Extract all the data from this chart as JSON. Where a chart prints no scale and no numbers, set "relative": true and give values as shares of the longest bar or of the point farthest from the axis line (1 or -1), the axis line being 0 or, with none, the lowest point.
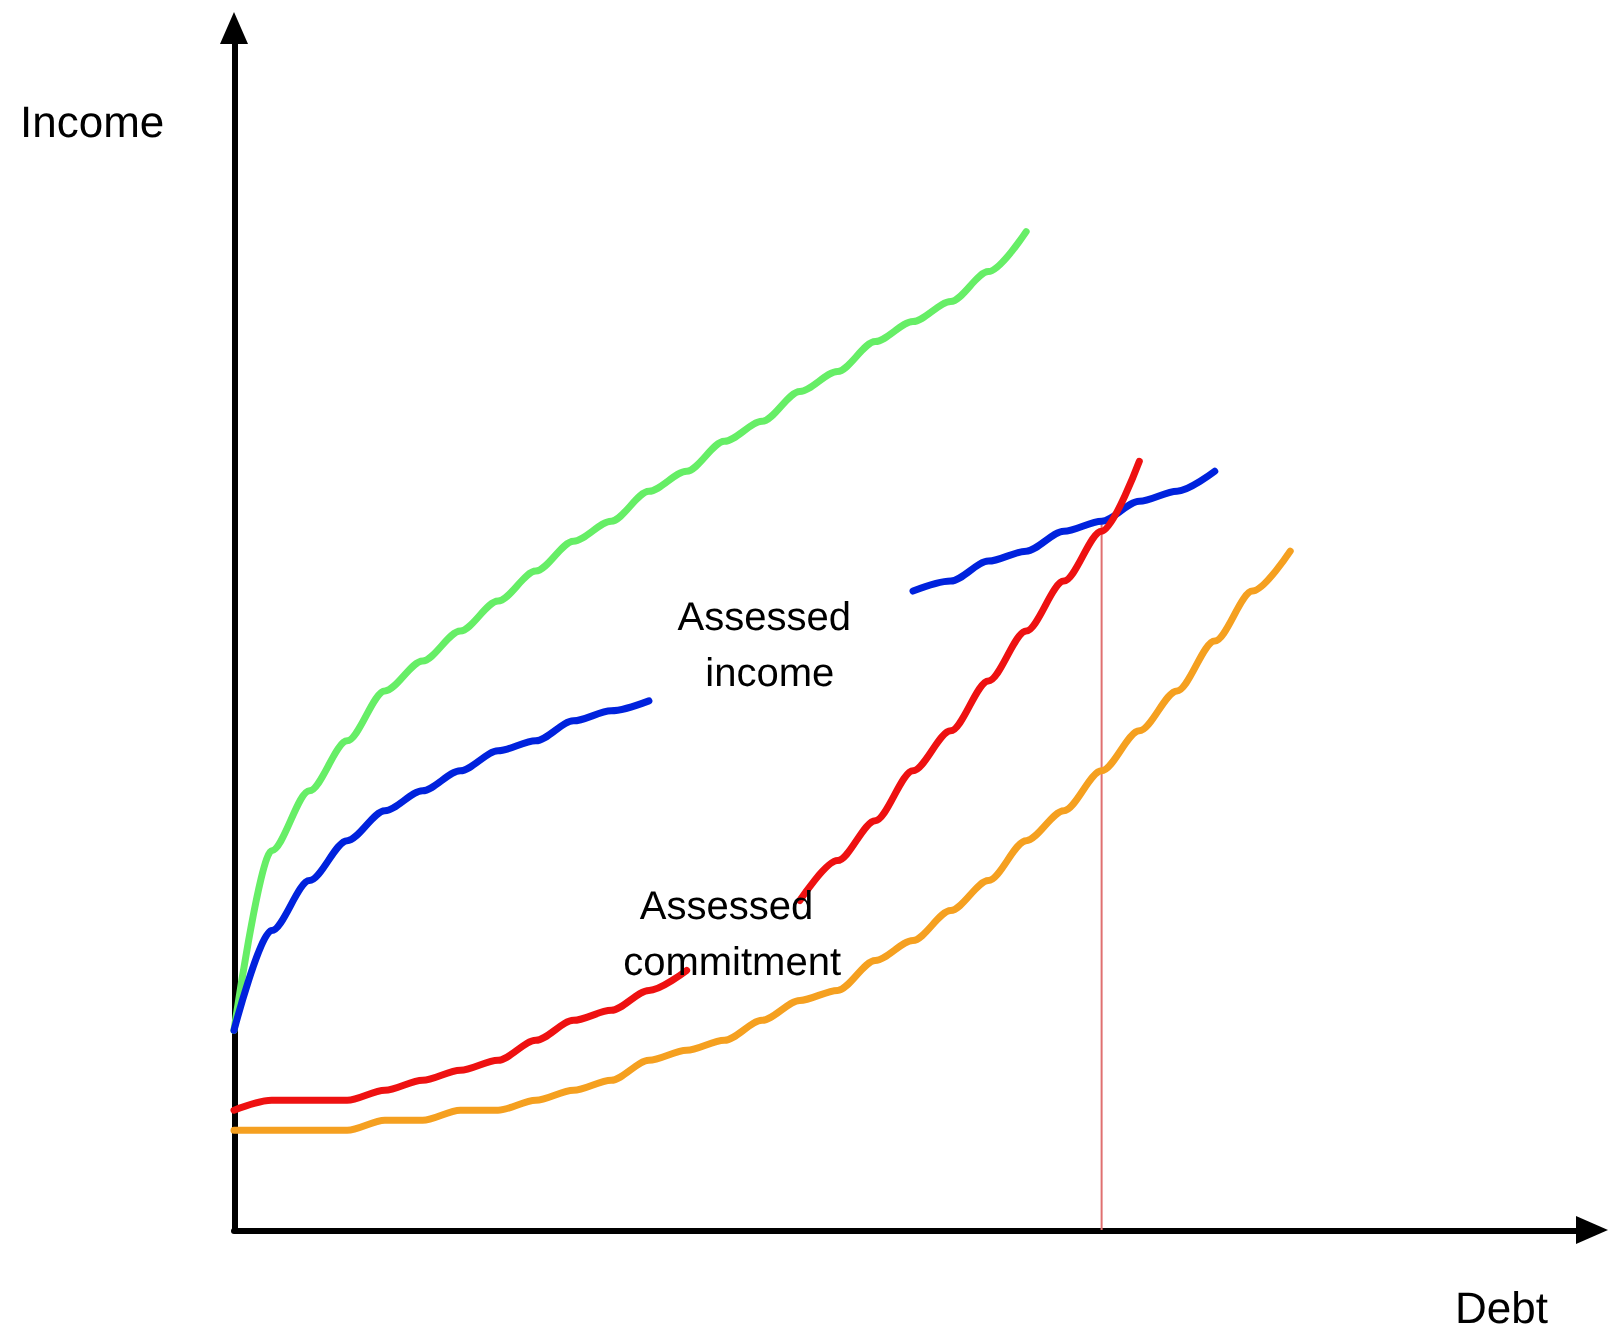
{
  "chart_data": {
    "type": "line",
    "relative": true,
    "xlabel": "Debt",
    "ylabel": "Income",
    "grid": false,
    "legend": false,
    "marker": "none",
    "line_style": "solid",
    "categories": [
      null,
      null,
      null,
      null,
      null,
      null,
      null,
      null,
      null,
      null,
      null,
      null,
      null,
      null,
      null,
      null,
      null,
      null,
      null,
      null,
      null,
      null,
      null,
      null,
      null,
      null,
      null,
      null,
      null,
      null,
      null,
      null,
      null,
      null,
      null,
      null,
      null
    ],
    "series": [
      {
        "color": "#66ee66",
        "values": [
          0.2,
          0.38,
          0.44,
          0.49,
          0.54,
          0.57,
          0.6,
          0.63,
          0.66,
          0.69,
          0.71,
          0.74,
          0.76,
          0.79,
          0.81,
          0.84,
          0.86,
          0.89,
          0.91,
          0.93,
          0.96,
          1.0,
          null,
          null,
          null,
          null,
          null,
          null,
          null,
          null,
          null,
          null,
          null,
          null,
          null,
          null,
          null
        ]
      },
      {
        "name": "Assessed income",
        "color": "#0022dd",
        "values": [
          0.2,
          0.3,
          0.35,
          0.39,
          0.42,
          0.44,
          0.46,
          0.48,
          0.49,
          0.51,
          0.52,
          0.53,
          null,
          null,
          null,
          null,
          null,
          null,
          0.64,
          0.65,
          0.67,
          0.68,
          0.7,
          0.71,
          0.73,
          0.74,
          0.76,
          null,
          null,
          null,
          null,
          null,
          null,
          null,
          null,
          null,
          null
        ]
      },
      {
        "name": "Assessed commitment",
        "color": "#ee1111",
        "values": [
          0.12,
          0.13,
          0.13,
          0.13,
          0.14,
          0.15,
          0.16,
          0.17,
          0.19,
          0.21,
          0.22,
          0.24,
          0.26,
          null,
          null,
          0.33,
          0.37,
          0.41,
          0.46,
          0.5,
          0.55,
          0.6,
          0.65,
          0.7,
          0.77,
          null,
          null,
          null,
          null,
          null,
          null,
          null,
          null,
          null,
          null,
          null,
          null
        ]
      },
      {
        "color": "#f5a020",
        "values": [
          0.1,
          0.1,
          0.1,
          0.1,
          0.11,
          0.11,
          0.12,
          0.12,
          0.13,
          0.14,
          0.15,
          0.17,
          0.18,
          0.19,
          0.21,
          0.23,
          0.24,
          0.27,
          0.29,
          0.32,
          0.35,
          0.39,
          0.42,
          0.46,
          0.5,
          0.54,
          0.59,
          0.64,
          0.68,
          null,
          null,
          null,
          null,
          null,
          null,
          null,
          null
        ]
      }
    ]
  }
}
